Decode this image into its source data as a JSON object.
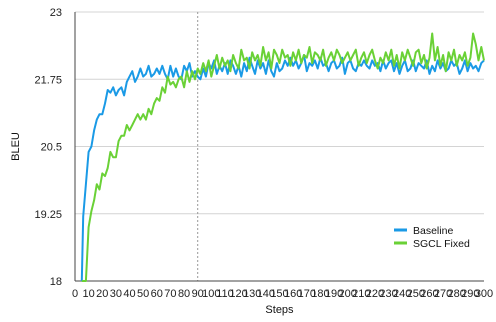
{
  "chart_data": {
    "type": "line",
    "title": "",
    "xlabel": "Steps",
    "ylabel": "BLEU",
    "xlim": [
      0,
      300
    ],
    "ylim": [
      18,
      23
    ],
    "xticks": [
      0,
      10,
      20,
      30,
      40,
      50,
      60,
      70,
      80,
      90,
      100,
      110,
      120,
      130,
      140,
      150,
      160,
      170,
      180,
      190,
      200,
      210,
      220,
      230,
      240,
      250,
      260,
      270,
      280,
      290,
      300
    ],
    "yticks": [
      18,
      19.25,
      20.5,
      21.75,
      23
    ],
    "ytick_labels": [
      "18",
      "19.25",
      "20.5",
      "21.75",
      "23"
    ],
    "grid": "horizontal",
    "legend": "lower-right",
    "marker_line": {
      "x": 90,
      "style": "dotted",
      "color": "#999999"
    },
    "series": [
      {
        "name": "Baseline",
        "color": "#1a9ae6",
        "x": [
          5,
          6,
          8,
          10,
          12,
          14,
          16,
          18,
          20,
          22,
          24,
          26,
          28,
          30,
          32,
          34,
          36,
          38,
          40,
          42,
          44,
          46,
          48,
          50,
          52,
          54,
          56,
          58,
          60,
          62,
          64,
          66,
          68,
          70,
          72,
          74,
          76,
          78,
          80,
          82,
          84,
          86,
          88,
          90,
          92,
          94,
          96,
          98,
          100,
          102,
          104,
          106,
          108,
          110,
          112,
          114,
          116,
          118,
          120,
          122,
          124,
          126,
          128,
          130,
          132,
          134,
          136,
          138,
          140,
          142,
          144,
          146,
          148,
          150,
          152,
          154,
          156,
          158,
          160,
          162,
          164,
          166,
          168,
          170,
          172,
          174,
          176,
          178,
          180,
          182,
          184,
          186,
          188,
          190,
          192,
          194,
          196,
          198,
          200,
          202,
          204,
          206,
          208,
          210,
          212,
          214,
          216,
          218,
          220,
          222,
          224,
          226,
          228,
          230,
          232,
          234,
          236,
          238,
          240,
          242,
          244,
          246,
          248,
          250,
          252,
          254,
          256,
          258,
          260,
          262,
          264,
          266,
          268,
          270,
          272,
          274,
          276,
          278,
          280,
          282,
          284,
          286,
          288,
          290,
          292,
          294,
          296,
          298,
          300
        ],
        "values": [
          18.0,
          19.2,
          19.8,
          20.4,
          20.5,
          20.8,
          21.0,
          21.1,
          21.1,
          21.3,
          21.55,
          21.5,
          21.6,
          21.45,
          21.55,
          21.6,
          21.45,
          21.7,
          21.8,
          21.9,
          21.7,
          21.8,
          21.95,
          21.8,
          21.85,
          22.0,
          21.8,
          21.85,
          21.95,
          21.85,
          22.0,
          21.85,
          21.75,
          22.0,
          21.8,
          21.95,
          21.8,
          21.75,
          22.0,
          21.9,
          22.05,
          21.8,
          21.9,
          21.8,
          21.75,
          21.95,
          21.8,
          22.05,
          21.95,
          22.1,
          21.85,
          22.0,
          21.9,
          22.05,
          21.85,
          22.1,
          22.0,
          21.85,
          22.0,
          21.8,
          22.05,
          21.9,
          22.15,
          22.0,
          21.85,
          22.1,
          21.95,
          22.05,
          21.85,
          22.1,
          21.9,
          21.8,
          22.05,
          21.9,
          21.95,
          22.1,
          22.0,
          22.15,
          22.0,
          22.1,
          21.95,
          22.05,
          22.2,
          21.9,
          22.05,
          22.0,
          22.1,
          21.95,
          22.15,
          22.0,
          22.05,
          21.9,
          22.05,
          22.1,
          21.95,
          22.0,
          22.15,
          21.85,
          22.05,
          22.1,
          21.95,
          21.9,
          22.05,
          22.0,
          22.1,
          22.0,
          21.95,
          22.1,
          22.0,
          22.05,
          21.9,
          22.1,
          21.95,
          22.05,
          22.1,
          21.9,
          22.05,
          21.85,
          22.0,
          22.1,
          21.9,
          21.95,
          22.1,
          21.9,
          22.05,
          22.0,
          21.95,
          22.1,
          21.85,
          22.0,
          21.9,
          22.1,
          21.95,
          22.05,
          21.9,
          21.95,
          22.1,
          22.0,
          22.05,
          21.85,
          21.95,
          22.1,
          21.9,
          22.05,
          21.95,
          22.0,
          21.9,
          22.05,
          22.1
        ]
      },
      {
        "name": "SGCL Fixed",
        "color": "#6ad136",
        "x": [
          5,
          8,
          10,
          12,
          14,
          16,
          18,
          20,
          22,
          24,
          26,
          28,
          30,
          32,
          34,
          36,
          38,
          40,
          42,
          44,
          46,
          48,
          50,
          52,
          54,
          56,
          58,
          60,
          62,
          64,
          66,
          68,
          70,
          72,
          74,
          76,
          78,
          80,
          82,
          84,
          86,
          88,
          90,
          92,
          94,
          96,
          98,
          100,
          102,
          104,
          106,
          108,
          110,
          112,
          114,
          116,
          118,
          120,
          122,
          124,
          126,
          128,
          130,
          132,
          134,
          136,
          138,
          140,
          142,
          144,
          146,
          148,
          150,
          152,
          154,
          156,
          158,
          160,
          162,
          164,
          166,
          168,
          170,
          172,
          174,
          176,
          178,
          180,
          182,
          184,
          186,
          188,
          190,
          192,
          194,
          196,
          198,
          200,
          202,
          204,
          206,
          208,
          210,
          212,
          214,
          216,
          218,
          220,
          222,
          224,
          226,
          228,
          230,
          232,
          234,
          236,
          238,
          240,
          242,
          244,
          246,
          248,
          250,
          252,
          254,
          256,
          258,
          260,
          262,
          264,
          266,
          268,
          270,
          272,
          274,
          276,
          278,
          280,
          282,
          284,
          286,
          288,
          290,
          292,
          294,
          296,
          298,
          300
        ],
        "values": [
          18.0,
          18.0,
          19.0,
          19.3,
          19.5,
          19.8,
          19.7,
          20.0,
          19.95,
          20.1,
          20.4,
          20.3,
          20.3,
          20.6,
          20.7,
          20.7,
          20.9,
          20.8,
          20.9,
          21.0,
          21.1,
          21.0,
          21.1,
          21.0,
          21.2,
          21.1,
          21.3,
          21.4,
          21.35,
          21.6,
          21.5,
          21.8,
          21.65,
          21.7,
          21.6,
          21.75,
          21.8,
          21.6,
          21.9,
          21.7,
          21.9,
          21.75,
          21.95,
          21.85,
          22.05,
          21.9,
          22.1,
          21.8,
          22.0,
          22.2,
          21.95,
          22.15,
          22.0,
          22.1,
          21.9,
          22.2,
          22.05,
          21.95,
          22.3,
          22.1,
          22.15,
          21.95,
          22.25,
          22.1,
          22.2,
          22.0,
          22.35,
          22.1,
          22.25,
          21.95,
          22.3,
          22.2,
          22.05,
          22.3,
          22.15,
          22.2,
          22.0,
          22.25,
          22.1,
          22.3,
          22.05,
          22.2,
          22.15,
          22.35,
          22.05,
          22.25,
          22.2,
          22.1,
          22.3,
          22.0,
          22.15,
          22.25,
          22.1,
          22.3,
          22.2,
          22.05,
          22.15,
          22.25,
          22.1,
          22.2,
          22.3,
          22.0,
          22.15,
          22.25,
          22.05,
          22.2,
          22.3,
          22.1,
          21.95,
          22.15,
          22.05,
          22.25,
          22.1,
          22.3,
          22.0,
          22.2,
          21.95,
          22.25,
          22.1,
          22.3,
          22.15,
          22.0,
          22.25,
          22.3,
          22.05,
          22.2,
          21.95,
          22.15,
          22.6,
          22.1,
          22.35,
          22.0,
          22.2,
          21.9,
          22.25,
          22.1,
          22.3,
          22.0,
          22.2,
          22.1,
          22.25,
          22.0,
          22.15,
          22.6,
          22.4,
          22.1,
          22.35,
          22.1
        ]
      }
    ]
  }
}
